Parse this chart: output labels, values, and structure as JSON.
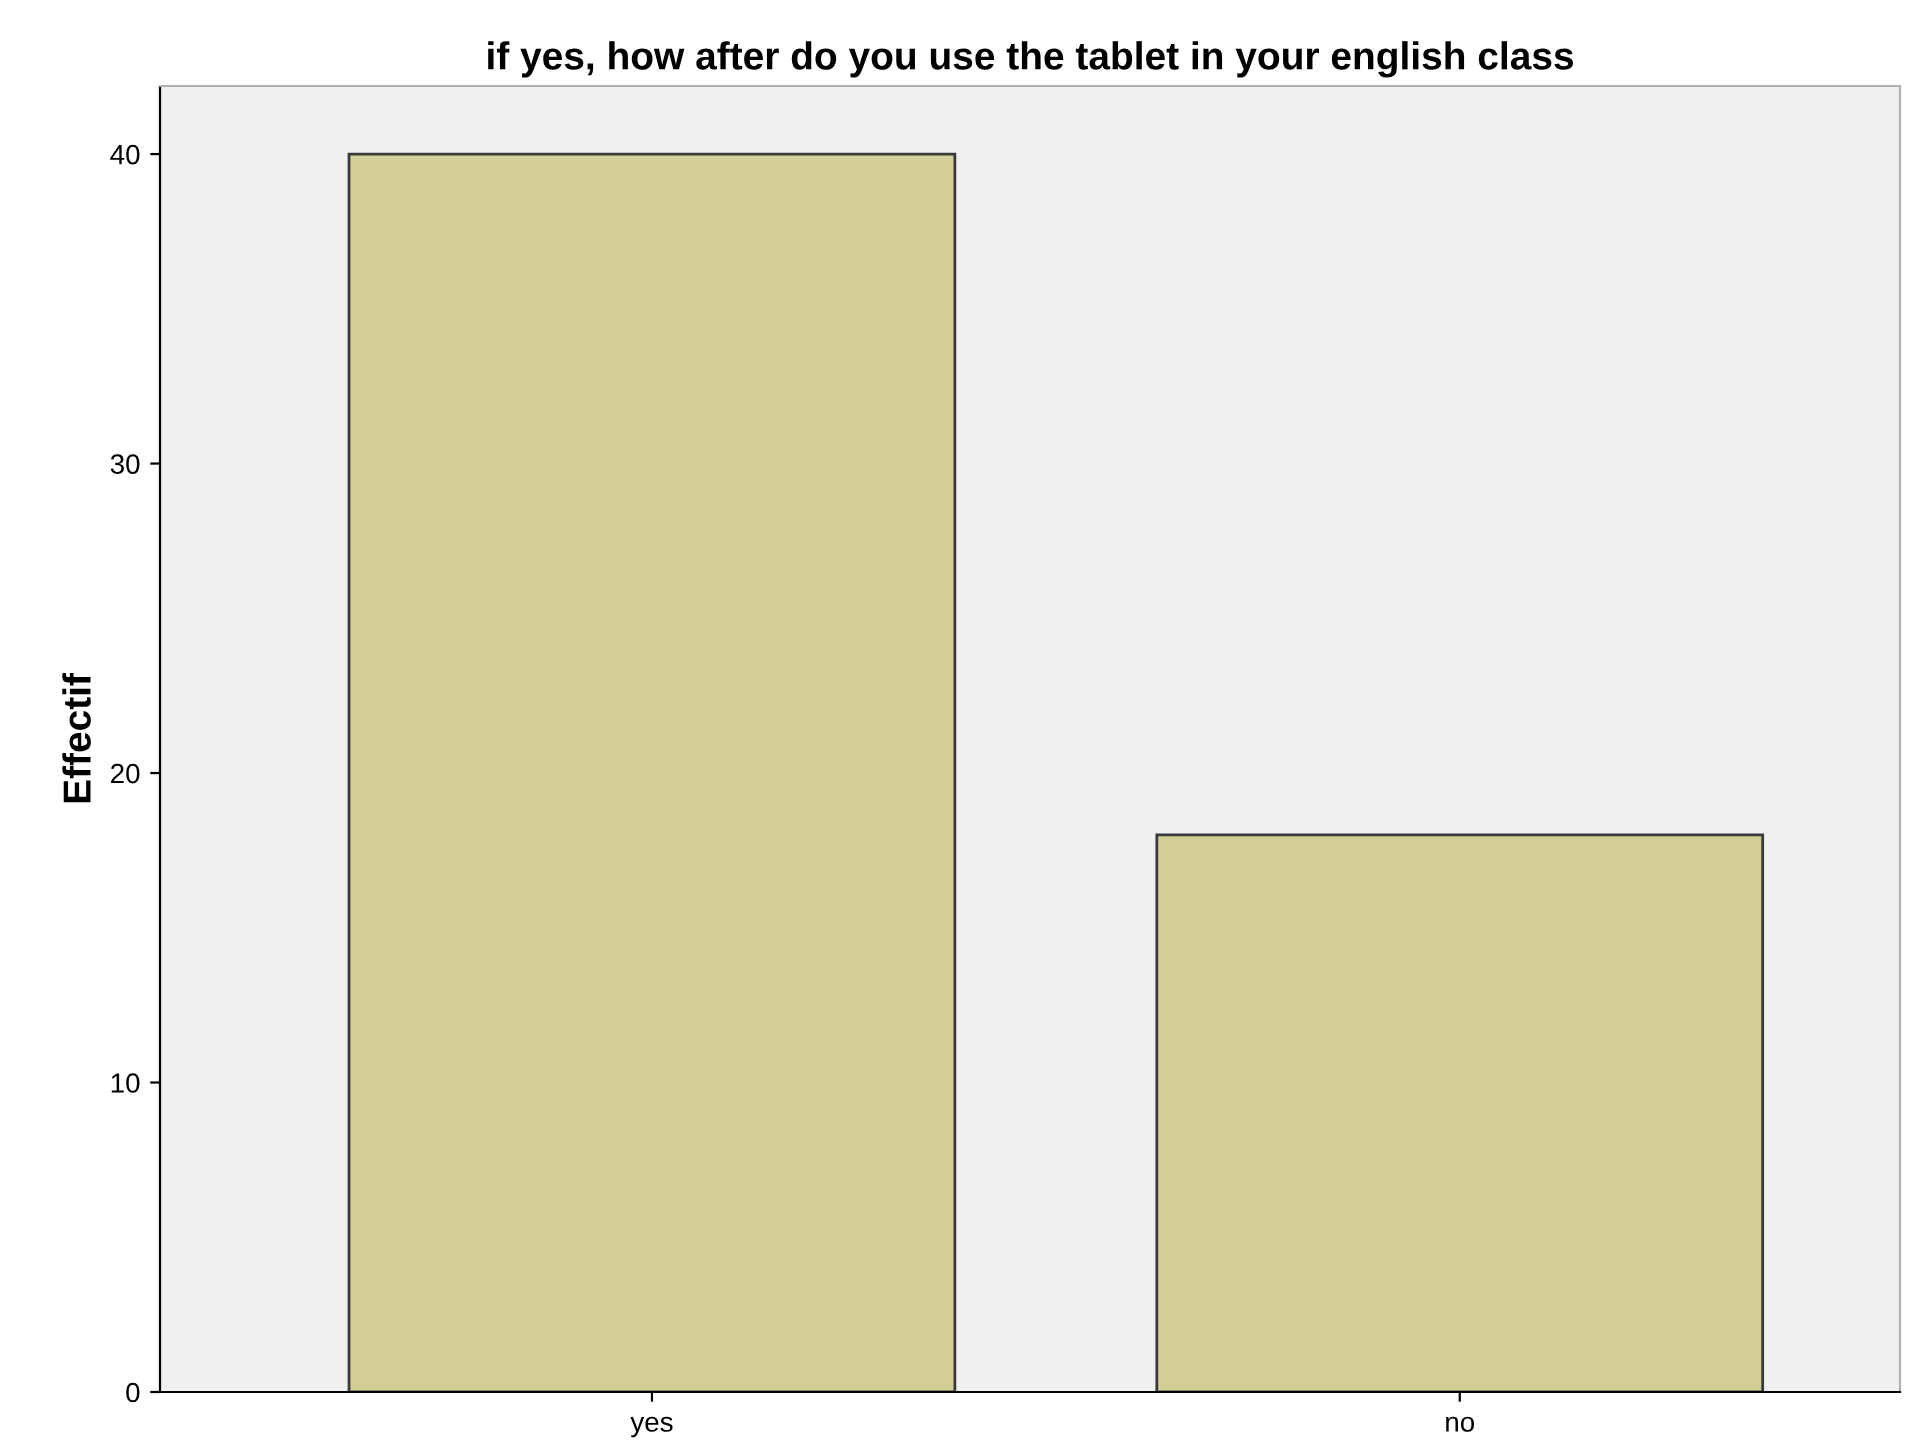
{
  "chart_data": {
    "type": "bar",
    "title": "if yes, how after do you use the tablet in your english class",
    "ylabel": "Effectif",
    "categories": [
      "yes",
      "no"
    ],
    "values": [
      40,
      18
    ],
    "color": "#d3ce97",
    "ylim": [
      0,
      42.2
    ],
    "yticks": [
      0,
      10,
      20,
      30,
      40
    ],
    "grid": false,
    "legend": false
  }
}
